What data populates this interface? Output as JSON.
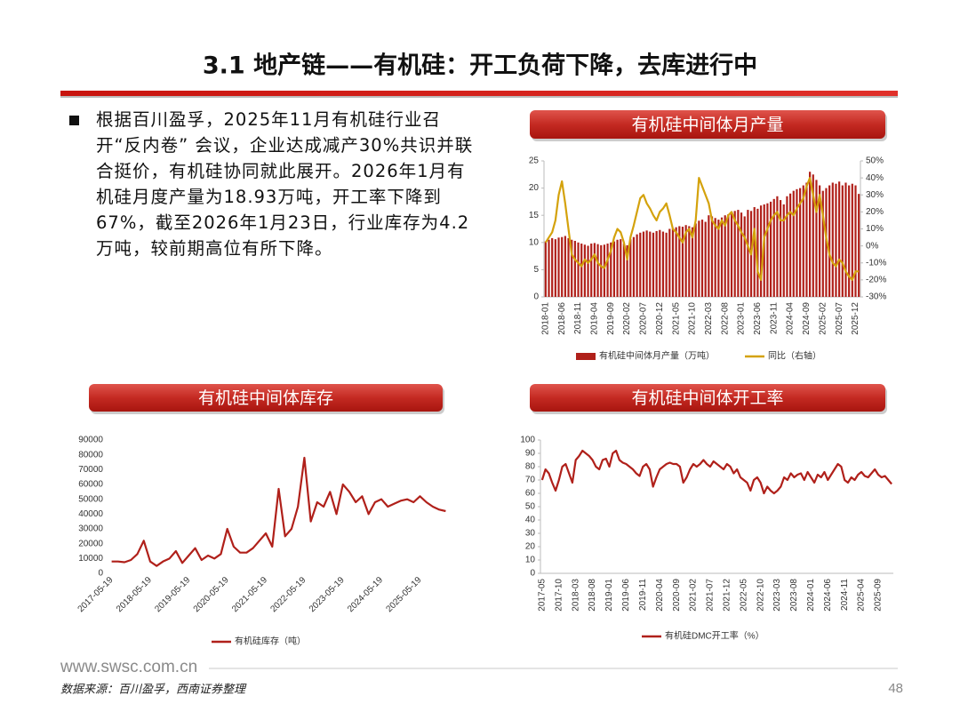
{
  "header": {
    "title": "3.1 地产链——有机硅：开工负荷下降，去库进行中"
  },
  "body": {
    "text": "根据百川盈孚，2025年11月有机硅行业召开“反内卷” 会议，企业达成减产30%共识并联合挺价，有机硅协同就此展开。2026年1月有机硅月度产量为18.93万吨，开工率下降到67%，截至2026年1月23日，行业库存为4.2万吨，较前期高位有所下降。"
  },
  "chart_data": [
    {
      "type": "bar",
      "title": "有机硅中间体月产量",
      "categories": [
        "2018-01",
        null,
        null,
        null,
        null,
        "2018-06",
        null,
        null,
        null,
        null,
        "2018-11",
        null,
        null,
        null,
        null,
        "2019-04",
        null,
        null,
        null,
        null,
        "2019-09",
        null,
        null,
        null,
        null,
        "2020-02",
        null,
        null,
        null,
        null,
        "2020-07",
        null,
        null,
        null,
        null,
        "2020-12",
        null,
        null,
        null,
        null,
        "2021-05",
        null,
        null,
        null,
        null,
        "2021-10",
        null,
        null,
        null,
        null,
        "2022-03",
        null,
        null,
        null,
        null,
        "2022-08",
        null,
        null,
        null,
        null,
        "2023-01",
        null,
        null,
        null,
        null,
        "2023-06",
        null,
        null,
        null,
        null,
        "2023-11",
        null,
        null,
        null,
        null,
        "2024-04",
        null,
        null,
        null,
        null,
        "2024-09",
        null,
        null,
        null,
        null,
        "2025-02",
        null,
        null,
        null,
        null,
        "2025-07",
        null,
        null,
        null,
        null,
        "2025-12",
        null
      ],
      "series": [
        {
          "name": "有机硅中间体月产量（万吨）",
          "color": "#b0201a",
          "type": "bar",
          "values": [
            10.2,
            10.5,
            10.8,
            10.6,
            10.9,
            11.0,
            11.2,
            10.8,
            10.5,
            10.3,
            10.0,
            9.8,
            9.6,
            9.4,
            9.8,
            9.9,
            9.7,
            9.5,
            9.6,
            9.8,
            10.0,
            10.2,
            10.5,
            10.6,
            9.8,
            9.5,
            10.6,
            11.0,
            11.5,
            11.8,
            12.0,
            12.2,
            12.0,
            11.8,
            12.1,
            12.3,
            12.0,
            11.8,
            12.5,
            12.6,
            12.8,
            13.0,
            12.9,
            13.2,
            13.0,
            12.8,
            13.5,
            14.0,
            14.2,
            13.8,
            15.0,
            14.8,
            14.5,
            14.2,
            14.6,
            15.0,
            15.2,
            15.5,
            15.8,
            16.0,
            15.5,
            14.8,
            16.0,
            15.8,
            16.5,
            16.2,
            16.8,
            17.0,
            17.2,
            17.5,
            18.0,
            18.5,
            17.8,
            17.0,
            18.5,
            19.0,
            19.5,
            19.8,
            20.0,
            20.5,
            21.0,
            23.0,
            22.5,
            21.5,
            20.5,
            19.5,
            20.0,
            20.5,
            21.0,
            20.8,
            21.2,
            20.5,
            21.0,
            20.5,
            20.8,
            20.5,
            18.93
          ]
        },
        {
          "name": "同比（右轴）",
          "color": "#d4a20c",
          "type": "line",
          "axis": "y2",
          "values": [
            2,
            5,
            8,
            15,
            30,
            38,
            25,
            10,
            -5,
            -8,
            -10,
            -12,
            -8,
            -10,
            -8,
            -5,
            -10,
            -12,
            -13,
            -8,
            -3,
            5,
            10,
            8,
            2,
            -8,
            5,
            12,
            20,
            28,
            30,
            25,
            22,
            18,
            15,
            20,
            22,
            25,
            18,
            10,
            8,
            5,
            2,
            8,
            10,
            5,
            15,
            40,
            35,
            30,
            25,
            15,
            12,
            10,
            15,
            12,
            18,
            20,
            15,
            12,
            8,
            5,
            0,
            -5,
            10,
            -15,
            -20,
            5,
            10,
            15,
            18,
            20,
            15,
            15,
            18,
            20,
            18,
            22,
            25,
            28,
            35,
            40,
            30,
            20,
            30,
            18,
            5,
            -5,
            -10,
            -12,
            -8,
            -10,
            -15,
            -18,
            -20,
            -15,
            -15
          ]
        }
      ],
      "ylim": [
        0,
        25
      ],
      "yticks": [
        0,
        5,
        10,
        15,
        20,
        25
      ],
      "y2lim": [
        -30,
        50
      ],
      "y2ticks": [
        {
          "value": -30,
          "label": "-30%"
        },
        {
          "value": -20,
          "label": "-20%"
        },
        {
          "value": -10,
          "label": "-10%"
        },
        {
          "value": 0,
          "label": "0%"
        },
        {
          "value": 10,
          "label": "10%"
        },
        {
          "value": 20,
          "label": "20%"
        },
        {
          "value": 30,
          "label": "30%"
        },
        {
          "value": 40,
          "label": "40%"
        },
        {
          "value": 50,
          "label": "50%"
        }
      ],
      "grid": false,
      "legend": "bottom"
    },
    {
      "type": "line",
      "title": "有机硅中间体库存",
      "categories": [
        "2017-05-19",
        null,
        null,
        null,
        null,
        null,
        "2018-05-19",
        null,
        null,
        null,
        null,
        null,
        "2019-05-19",
        null,
        null,
        null,
        null,
        null,
        "2020-05-19",
        null,
        null,
        null,
        null,
        null,
        "2021-05-19",
        null,
        null,
        null,
        null,
        null,
        "2022-05-19",
        null,
        null,
        null,
        null,
        null,
        "2023-05-19",
        null,
        null,
        null,
        null,
        null,
        "2024-05-19",
        null,
        null,
        null,
        null,
        null,
        "2025-05-19",
        null,
        null,
        null,
        null
      ],
      "series": [
        {
          "name": "有机硅库存（吨）",
          "color": "#b0201a",
          "values": [
            8000,
            8000,
            7500,
            9000,
            13000,
            22000,
            8000,
            5000,
            8000,
            10000,
            15000,
            7000,
            12000,
            17000,
            9000,
            12000,
            10000,
            13000,
            30000,
            18000,
            14000,
            14000,
            17000,
            22000,
            27000,
            18000,
            57000,
            25000,
            30000,
            45000,
            78000,
            35000,
            48000,
            45000,
            55000,
            40000,
            60000,
            55000,
            48000,
            52000,
            40000,
            48000,
            50000,
            45000,
            47000,
            49000,
            50000,
            48000,
            52000,
            48000,
            45000,
            43000,
            42000
          ]
        }
      ],
      "ylim": [
        0,
        90000
      ],
      "yticks": [
        0,
        10000,
        20000,
        30000,
        40000,
        50000,
        60000,
        70000,
        80000,
        90000
      ],
      "grid": false,
      "legend": "bottom"
    },
    {
      "type": "line",
      "title": "有机硅中间体开工率",
      "categories": [
        "2017-05",
        null,
        null,
        null,
        null,
        "2017-10",
        null,
        null,
        null,
        null,
        "2018-03",
        null,
        null,
        null,
        null,
        "2018-08",
        null,
        null,
        null,
        null,
        "2019-01",
        null,
        null,
        null,
        null,
        "2019-06",
        null,
        null,
        null,
        null,
        "2019-11",
        null,
        null,
        null,
        null,
        "2020-04",
        null,
        null,
        null,
        null,
        "2020-09",
        null,
        null,
        null,
        null,
        "2021-02",
        null,
        null,
        null,
        null,
        "2021-07",
        null,
        null,
        null,
        null,
        "2021-12",
        null,
        null,
        null,
        null,
        "2022-05",
        null,
        null,
        null,
        null,
        "2022-10",
        null,
        null,
        null,
        null,
        "2023-03",
        null,
        null,
        null,
        null,
        "2023-08",
        null,
        null,
        null,
        null,
        "2024-01",
        null,
        null,
        null,
        null,
        "2024-06",
        null,
        null,
        null,
        null,
        "2024-11",
        null,
        null,
        null,
        null,
        "2025-04",
        null,
        null,
        null,
        null,
        "2025-09",
        null,
        null,
        null,
        null
      ],
      "series": [
        {
          "name": "有机硅DMC开工率（%）",
          "color": "#b0201a",
          "values": [
            70,
            78,
            75,
            68,
            62,
            70,
            80,
            82,
            75,
            68,
            85,
            88,
            92,
            90,
            88,
            85,
            80,
            78,
            85,
            86,
            80,
            90,
            92,
            85,
            83,
            82,
            80,
            78,
            75,
            73,
            80,
            82,
            78,
            65,
            72,
            78,
            80,
            82,
            83,
            82,
            82,
            80,
            68,
            72,
            78,
            82,
            80,
            82,
            85,
            82,
            80,
            84,
            82,
            80,
            78,
            82,
            80,
            75,
            78,
            72,
            70,
            68,
            62,
            70,
            72,
            68,
            60,
            65,
            62,
            60,
            62,
            65,
            72,
            70,
            75,
            72,
            74,
            75,
            70,
            76,
            72,
            68,
            74,
            72,
            76,
            70,
            74,
            78,
            82,
            80,
            70,
            68,
            72,
            70,
            74,
            76,
            73,
            72,
            75,
            78,
            74,
            72,
            73,
            70,
            67
          ]
        }
      ],
      "ylim": [
        0,
        100
      ],
      "yticks": [
        0,
        10,
        20,
        30,
        40,
        50,
        60,
        70,
        80,
        90,
        100
      ],
      "grid": false,
      "legend": "bottom"
    }
  ],
  "footer": {
    "website": "www.swsc.com.cn",
    "source": "数据来源：百川盈孚，西南证券整理",
    "page": "48"
  }
}
